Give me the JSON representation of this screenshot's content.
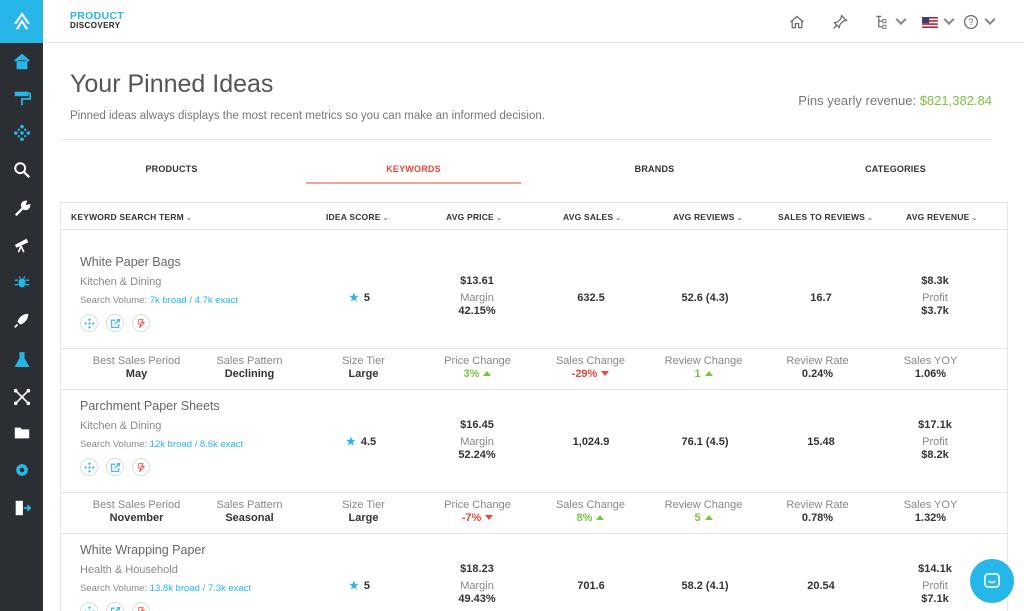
{
  "header": {
    "brand_line1": "PRODUCT",
    "brand_line2": "DISCOVERY",
    "icons": [
      "home-icon",
      "pin-icon",
      "hierarchy-icon",
      "us-flag-icon",
      "help-icon"
    ]
  },
  "sidebar": {
    "icons": [
      "logo-icon",
      "dashboard-icon",
      "paint-roller-icon",
      "network-icon",
      "search-icon",
      "wrench-icon",
      "telescope-icon",
      "bug-icon",
      "rocket-icon",
      "flask-icon",
      "connections-icon",
      "folder-icon",
      "settings-icon",
      "exit-icon"
    ]
  },
  "page": {
    "title": "Your Pinned Ideas",
    "subtitle": "Pinned ideas always displays the most recent metrics so you can make an informed decision.",
    "revenue_label": "Pins yearly revenue:",
    "revenue_value": "$821,382.84"
  },
  "tabs": [
    {
      "label": "PRODUCTS",
      "active": false
    },
    {
      "label": "KEYWORDS",
      "active": true
    },
    {
      "label": "BRANDS",
      "active": false
    },
    {
      "label": "CATEGORIES",
      "active": false
    }
  ],
  "table": {
    "headers": [
      "KEYWORD SEARCH TERM",
      "IDEA SCORE",
      "AVG PRICE",
      "AVG SALES",
      "AVG REVIEWS",
      "SALES TO REVIEWS",
      "AVG REVENUE"
    ],
    "sub_labels": [
      "Best Sales Period",
      "Sales Pattern",
      "Size Tier",
      "Price Change",
      "Sales Change",
      "Review Change",
      "Review Rate",
      "Sales YOY"
    ],
    "margin_label": "Margin",
    "profit_label": "Profit",
    "search_volume_label": "Search Volume:",
    "rows": [
      {
        "name": "White Paper Bags",
        "category": "Kitchen & Dining",
        "volume": "7k broad / 4.7k exact",
        "score": "5",
        "price": "$13.61",
        "margin": "42.15%",
        "sales": "632.5",
        "reviews": "52.6 (4.3)",
        "sales_to_reviews": "16.7",
        "revenue": "$8.3k",
        "profit": "$3.7k",
        "details": {
          "best_period": "May",
          "pattern": "Declining",
          "size_tier": "Large",
          "price_change": "3%",
          "sales_change": "-29%",
          "review_change": "1",
          "review_rate": "0.24%",
          "sales_yoy": "1.06%"
        }
      },
      {
        "name": "Parchment Paper Sheets",
        "category": "Kitchen & Dining",
        "volume": "12k broad / 8.6k exact",
        "score": "4.5",
        "price": "$16.45",
        "margin": "52.24%",
        "sales": "1,024.9",
        "reviews": "76.1 (4.5)",
        "sales_to_reviews": "15.48",
        "revenue": "$17.1k",
        "profit": "$8.2k",
        "details": {
          "best_period": "November",
          "pattern": "Seasonal",
          "size_tier": "Large",
          "price_change": "-7%",
          "sales_change": "8%",
          "review_change": "5",
          "review_rate": "0.78%",
          "sales_yoy": "1.32%"
        }
      },
      {
        "name": "White Wrapping Paper",
        "category": "Health & Household",
        "volume": "13.8k broad / 7.3k exact",
        "score": "5",
        "price": "$18.23",
        "margin": "49.43%",
        "sales": "701.6",
        "reviews": "58.2 (4.1)",
        "sales_to_reviews": "20.54",
        "revenue": "$14.1k",
        "profit": "$7.1k"
      }
    ]
  },
  "colors": {
    "accent": "#26b6e8",
    "positive": "#7dc242",
    "negative": "#e8473b",
    "sidebar": "#2b2f33"
  }
}
